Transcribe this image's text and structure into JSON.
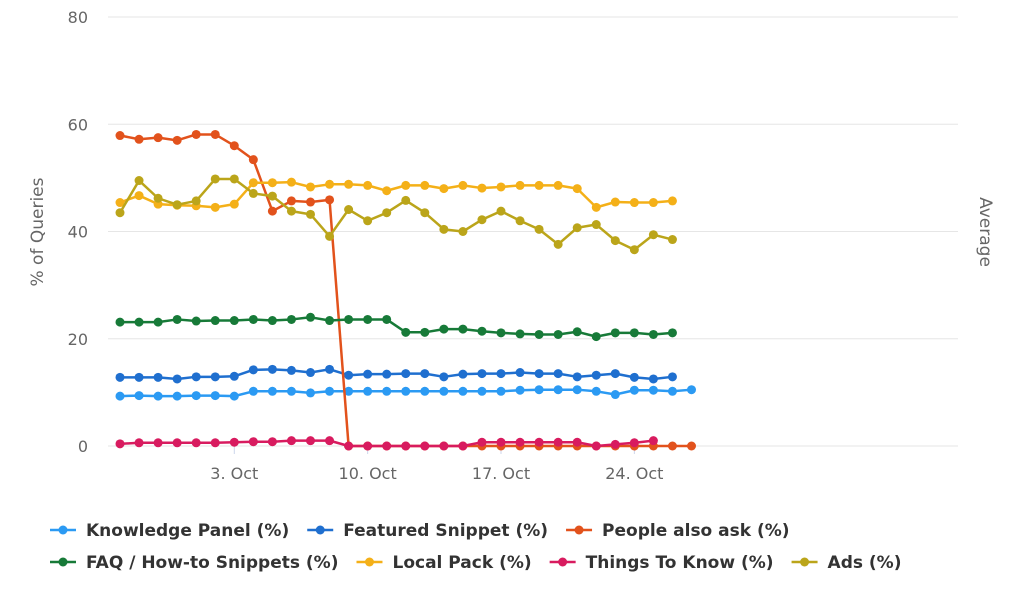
{
  "chart_data": {
    "type": "line",
    "xlabel": "",
    "ylabel": "% of Queries",
    "ylabel_right": "Average",
    "ylim": [
      0,
      80
    ],
    "yticks": [
      0,
      20,
      40,
      60,
      80
    ],
    "grid": true,
    "legend_position": "bottom",
    "x": [
      "2023-09-27",
      "2023-09-28",
      "2023-09-29",
      "2023-09-30",
      "2023-10-01",
      "2023-10-02",
      "2023-10-03",
      "2023-10-04",
      "2023-10-05",
      "2023-10-06",
      "2023-10-07",
      "2023-10-08",
      "2023-10-09",
      "2023-10-10",
      "2023-10-11",
      "2023-10-12",
      "2023-10-13",
      "2023-10-14",
      "2023-10-15",
      "2023-10-16",
      "2023-10-17",
      "2023-10-18",
      "2023-10-19",
      "2023-10-20",
      "2023-10-21",
      "2023-10-22",
      "2023-10-23",
      "2023-10-24",
      "2023-10-25",
      "2023-10-26",
      "2023-10-27"
    ],
    "xticks": [
      {
        "x": "2023-10-03",
        "label": "3. Oct"
      },
      {
        "x": "2023-10-10",
        "label": "10. Oct"
      },
      {
        "x": "2023-10-17",
        "label": "17. Oct"
      },
      {
        "x": "2023-10-24",
        "label": "24. Oct"
      }
    ],
    "series": [
      {
        "name": "Knowledge Panel (%)",
        "color": "#2b9af3",
        "values": [
          9.3,
          9.4,
          9.3,
          9.3,
          9.4,
          9.4,
          9.3,
          10.2,
          10.2,
          10.2,
          9.9,
          10.2,
          10.2,
          10.2,
          10.2,
          10.2,
          10.2,
          10.2,
          10.2,
          10.2,
          10.2,
          10.4,
          10.5,
          10.5,
          10.5,
          10.2,
          9.6,
          10.4,
          10.4,
          10.2,
          10.5
        ]
      },
      {
        "name": "Featured Snippet (%)",
        "color": "#1f6fcf",
        "values": [
          12.8,
          12.8,
          12.8,
          12.5,
          12.9,
          12.9,
          13.0,
          14.2,
          14.3,
          14.1,
          13.7,
          14.3,
          13.2,
          13.4,
          13.4,
          13.5,
          13.5,
          12.9,
          13.4,
          13.5,
          13.5,
          13.7,
          13.5,
          13.5,
          12.9,
          13.2,
          13.5,
          12.8,
          12.5,
          12.9,
          null
        ]
      },
      {
        "name": "People also ask (%)",
        "color": "#e2521c",
        "values": [
          57.9,
          57.2,
          57.5,
          57.0,
          58.1,
          58.1,
          56.0,
          53.4,
          43.8,
          45.7,
          45.5,
          45.9,
          0,
          0,
          0,
          0,
          0,
          0,
          0,
          0,
          0,
          0,
          0,
          0,
          0,
          0,
          0,
          0,
          0,
          0,
          0
        ]
      },
      {
        "name": "FAQ / How-to Snippets (%)",
        "color": "#177a38",
        "values": [
          23.1,
          23.1,
          23.1,
          23.6,
          23.3,
          23.4,
          23.4,
          23.6,
          23.4,
          23.6,
          24.0,
          23.4,
          23.6,
          23.6,
          23.6,
          21.2,
          21.2,
          21.8,
          21.8,
          21.4,
          21.1,
          20.9,
          20.8,
          20.8,
          21.3,
          20.4,
          21.1,
          21.1,
          20.8,
          21.1,
          null
        ]
      },
      {
        "name": "Local Pack (%)",
        "color": "#f4b018",
        "values": [
          45.4,
          46.7,
          45.1,
          44.9,
          44.8,
          44.5,
          45.1,
          49.1,
          49.1,
          49.2,
          48.3,
          48.8,
          48.8,
          48.6,
          47.6,
          48.6,
          48.6,
          48.0,
          48.6,
          48.1,
          48.3,
          48.6,
          48.6,
          48.6,
          48.0,
          44.5,
          45.5,
          45.4,
          45.4,
          45.7,
          null
        ]
      },
      {
        "name": "Things To Know (%)",
        "color": "#d81b5f",
        "values": [
          0.4,
          0.6,
          0.6,
          0.6,
          0.6,
          0.6,
          0.7,
          0.8,
          0.8,
          1.0,
          1.0,
          1.0,
          0,
          0,
          0,
          0,
          0,
          0,
          0,
          0.7,
          0.7,
          0.7,
          0.7,
          0.7,
          0.7,
          0,
          0.3,
          0.6,
          1.0,
          null,
          null
        ]
      },
      {
        "name": "Ads (%)",
        "color": "#bba51a",
        "values": [
          43.5,
          49.5,
          46.2,
          45.0,
          45.7,
          49.8,
          49.8,
          47.1,
          46.6,
          43.8,
          43.2,
          39.1,
          44.1,
          42.0,
          43.5,
          45.8,
          43.5,
          40.4,
          40.0,
          42.2,
          43.8,
          42.0,
          40.4,
          37.6,
          40.7,
          41.3,
          38.3,
          36.6,
          39.4,
          38.5,
          null
        ]
      }
    ]
  }
}
